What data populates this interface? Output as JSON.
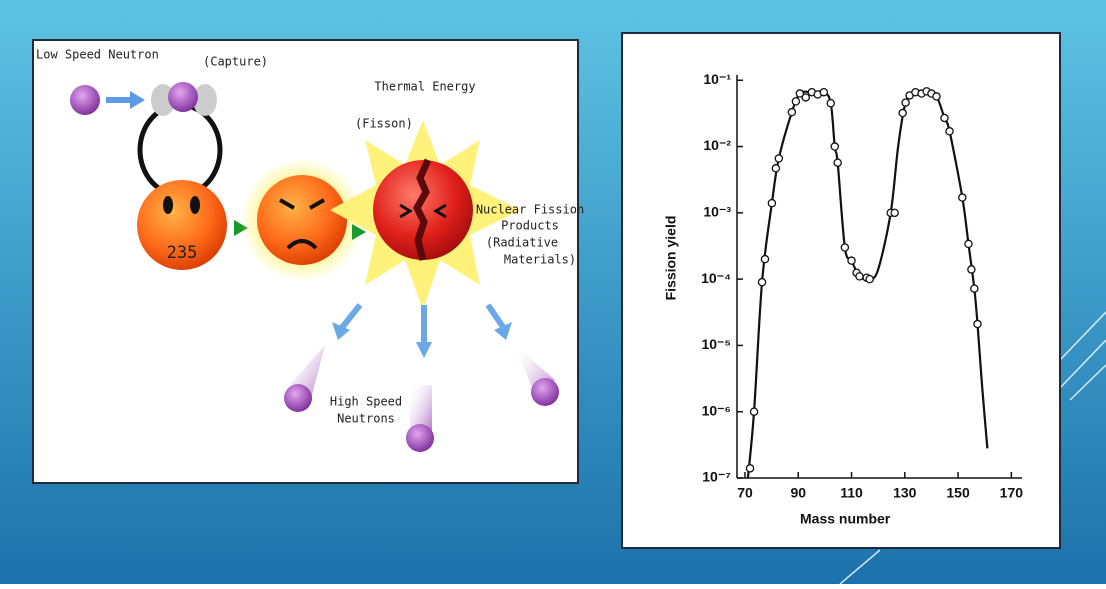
{
  "diagram": {
    "labels": {
      "low_speed_neutron": "Low Speed Neutron",
      "capture": "(Capture)",
      "thermal_energy": "Thermal Energy",
      "fisson": "(Fisson)",
      "nucleus": "235"
    },
    "products": [
      "Nuclear Fission",
      "Products",
      "(Radiative",
      "Materials)"
    ],
    "high_speed": [
      "High Speed",
      "Neutrons"
    ]
  },
  "chart_data": {
    "type": "line",
    "x_label": "Mass number",
    "y_label": "Fission yield",
    "log_y": true,
    "xlim": [
      67,
      174
    ],
    "ylim": [
      1e-07,
      0.12
    ],
    "xticks": [
      70,
      90,
      110,
      130,
      150,
      170
    ],
    "yticks": [
      {
        "value": 1e-07,
        "label": "10⁻⁷"
      },
      {
        "value": 1e-06,
        "label": "10⁻⁶"
      },
      {
        "value": 1e-05,
        "label": "10⁻⁵"
      },
      {
        "value": 0.0001,
        "label": "10⁻⁴"
      },
      {
        "value": 0.001,
        "label": "10⁻³"
      },
      {
        "value": 0.01,
        "label": "10⁻²"
      },
      {
        "value": 0.1,
        "label": "10⁻¹"
      }
    ],
    "series": [
      {
        "color": "#111111",
        "style": "curve",
        "x": [
          71.1,
          73.4,
          76.4,
          80.1,
          82.7,
          87.6,
          90.6,
          95.1,
          99.6,
          102.2,
          103.7,
          104.8,
          107.5,
          110,
          113,
          116.8,
          120,
          124.7,
          127.5,
          130.3,
          134,
          138.2,
          141.9,
          144.9,
          146.8,
          151.6,
          153.9,
          156.1,
          157.3,
          159,
          161
        ],
        "values": [
          1e-07,
          1e-06,
          9e-05,
          0.0014,
          0.0066,
          0.033,
          0.063,
          0.066,
          0.066,
          0.045,
          0.01,
          0.0057,
          0.0003,
          0.00019,
          0.00011,
          0.0001,
          0.00014,
          0.001,
          0.01,
          0.046,
          0.066,
          0.068,
          0.057,
          0.027,
          0.017,
          0.0017,
          0.00034,
          7.2e-05,
          2.1e-05,
          2.5e-06,
          2.8e-07
        ]
      },
      {
        "color": "#111111",
        "style": "circles",
        "x": [
          71.9,
          73.4,
          76.4,
          77.5,
          80.1,
          81.6,
          82.7,
          87.6,
          89.1,
          90.6,
          92.8,
          95.1,
          97.3,
          99.6,
          102.2,
          103.7,
          104.8,
          107.5,
          110,
          111.9,
          113,
          115.7,
          116.8,
          124.7,
          126.2,
          129.2,
          130.3,
          131.8,
          134,
          136.3,
          138.2,
          140,
          141.9,
          144.9,
          146.8,
          151.6,
          153.9,
          155,
          156.1,
          157.3
        ],
        "values": [
          1.4e-07,
          1e-06,
          9e-05,
          0.0002,
          0.0014,
          0.0047,
          0.0066,
          0.033,
          0.048,
          0.063,
          0.055,
          0.066,
          0.061,
          0.066,
          0.045,
          0.01,
          0.0057,
          0.0003,
          0.00019,
          0.000125,
          0.00011,
          0.000105,
          0.0001,
          0.001,
          0.001,
          0.032,
          0.046,
          0.059,
          0.066,
          0.063,
          0.068,
          0.063,
          0.057,
          0.027,
          0.017,
          0.0017,
          0.00034,
          0.00014,
          7.2e-05,
          2.1e-05
        ]
      }
    ]
  }
}
